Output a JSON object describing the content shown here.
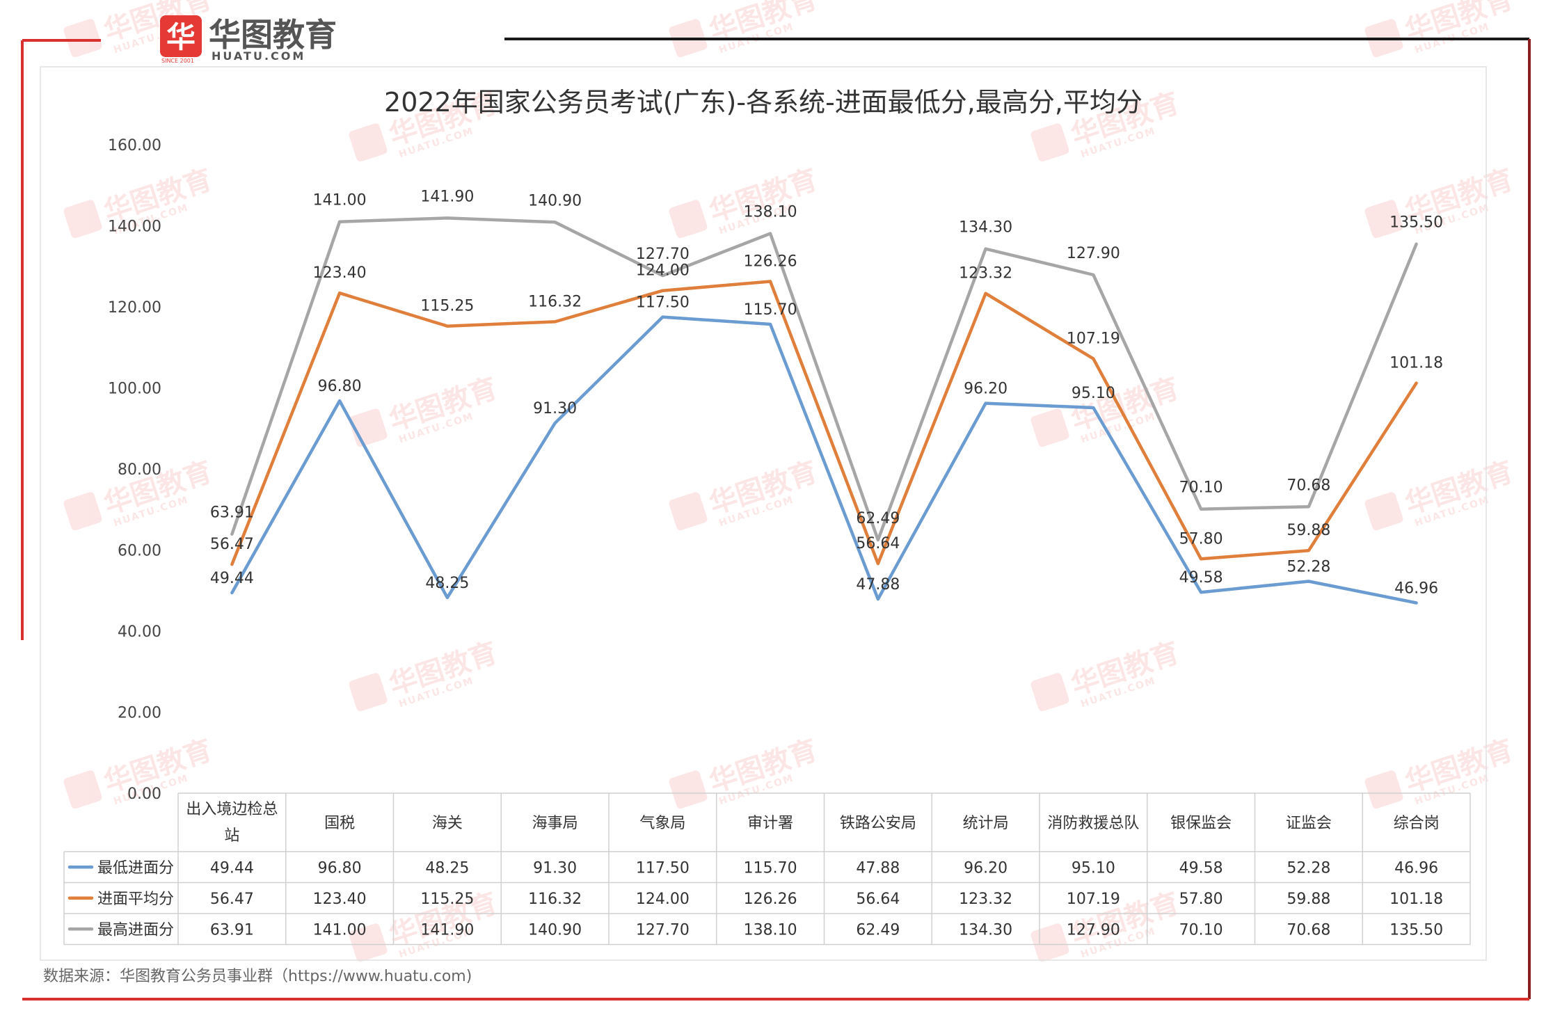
{
  "brand": {
    "logo_text": "华图教育",
    "logo_sub": "HUATU.COM",
    "since": "SINCE 2001"
  },
  "footer": {
    "source": "数据来源：华图教育公务员事业群（https://www.huatu.com)"
  },
  "colors": {
    "min": "#6A9BD1",
    "avg": "#E07F3B",
    "max": "#A6A6A6",
    "frame_red": "#D9322E",
    "frame_dark": "#1A1A1A"
  },
  "chart_data": {
    "type": "line",
    "title": "2022年国家公务员考试(广东)-各系统-进面最低分,最高分,平均分",
    "categories": [
      "出入境边检总站",
      "国税",
      "海关",
      "海事局",
      "气象局",
      "审计署",
      "铁路公安局",
      "统计局",
      "消防救援总队",
      "银保监会",
      "证监会",
      "综合岗"
    ],
    "series": [
      {
        "name": "最低进面分",
        "color": "#6A9BD1",
        "values": [
          49.44,
          96.8,
          48.25,
          91.3,
          117.5,
          115.7,
          47.88,
          96.2,
          95.1,
          49.58,
          52.28,
          46.96
        ]
      },
      {
        "name": "进面平均分",
        "color": "#E07F3B",
        "values": [
          56.47,
          123.4,
          115.25,
          116.32,
          124.0,
          126.26,
          56.64,
          123.32,
          107.19,
          57.8,
          59.88,
          101.18
        ]
      },
      {
        "name": "最高进面分",
        "color": "#A6A6A6",
        "values": [
          63.91,
          141.0,
          141.9,
          140.9,
          127.7,
          138.1,
          62.49,
          134.3,
          127.9,
          70.1,
          70.68,
          135.5
        ]
      }
    ],
    "ylim": [
      0,
      160
    ],
    "yticks": [
      0,
      20,
      40,
      60,
      80,
      100,
      120,
      140,
      160
    ],
    "grid": false,
    "legend": "data-table-below",
    "decimals": 2
  }
}
